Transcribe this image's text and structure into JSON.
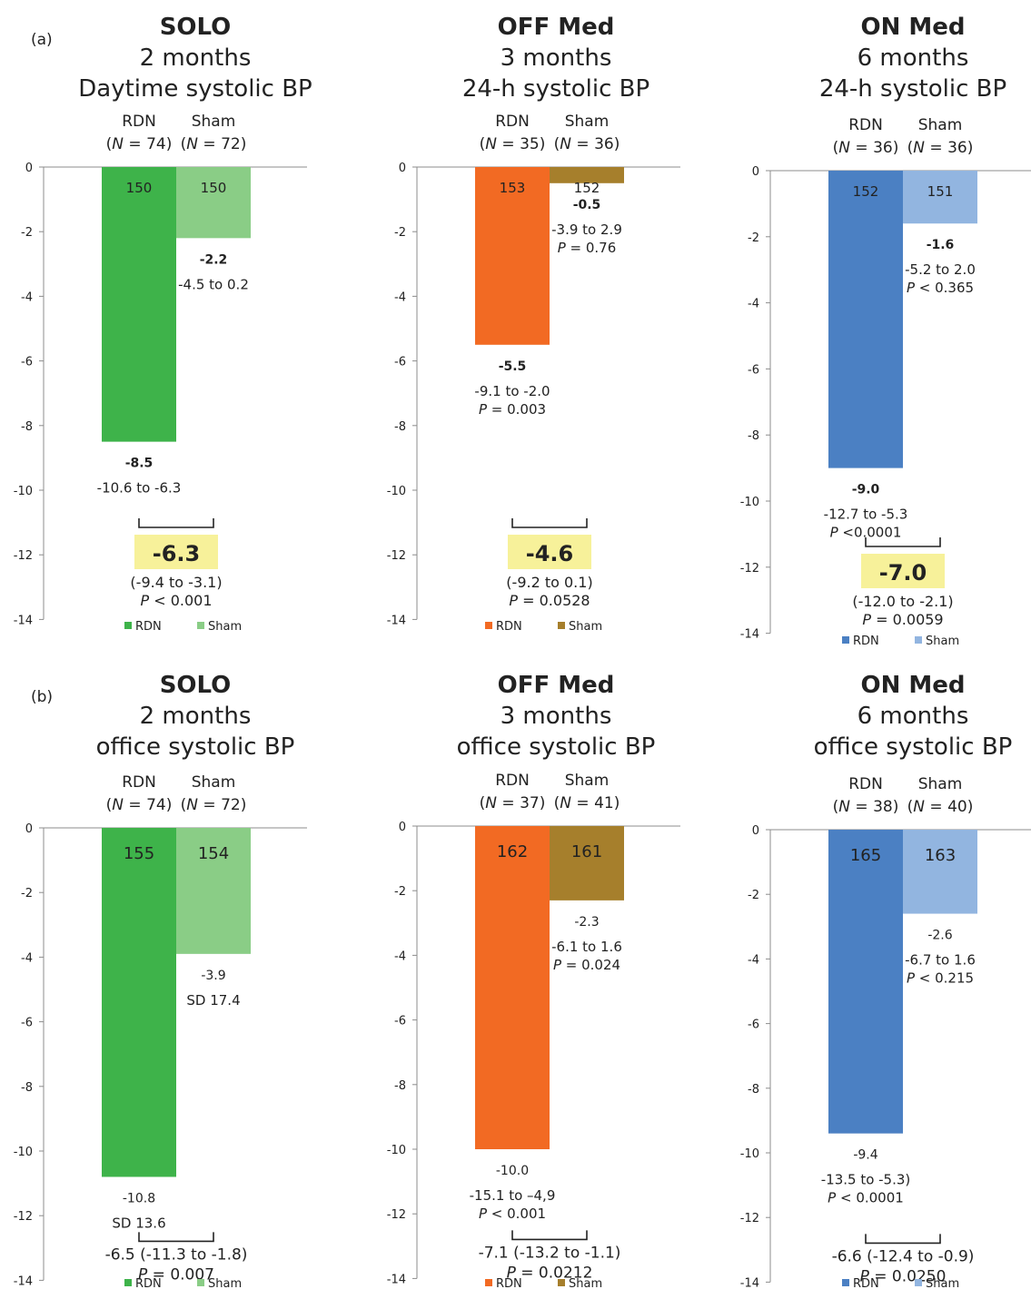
{
  "panels": [
    {
      "id": "a",
      "label": "(a)"
    },
    {
      "id": "b",
      "label": "(b)"
    }
  ],
  "legend_labels": [
    "RDN",
    "Sham"
  ],
  "colors": {
    "solo_rdn": "#3eb34a",
    "solo_sham": "#8acd86",
    "off_rdn": "#f26a23",
    "off_sham": "#a67f2c",
    "on_rdn": "#4b80c3",
    "on_sham": "#92b5e0",
    "highlight": "#f7f19a"
  },
  "chart_data": [
    {
      "type": "bar",
      "panel": "a",
      "title": "SOLO",
      "subtitle_lines": [
        "2 months",
        "Daytime systolic BP"
      ],
      "categories": [
        "RDN",
        "Sham"
      ],
      "n_labels": [
        "(N = 74)",
        "(N = 72)"
      ],
      "values": [
        -8.5,
        -2.2
      ],
      "baseline_labels": [
        "150",
        "150"
      ],
      "value_labels": [
        "-8.5",
        "-2.2"
      ],
      "value_bold": true,
      "ci_labels": [
        [
          "-10.6 to -6.3"
        ],
        [
          "-4.5 to 0.2"
        ]
      ],
      "difference": {
        "value": "-6.3",
        "ci": "(-9.4 to -3.1)",
        "p": "P < 0.001",
        "highlight": true
      },
      "ylim": [
        -14,
        0
      ],
      "yticks": [
        "0",
        "-2",
        "-4",
        "-6",
        "-8",
        "-10",
        "-12",
        "-14"
      ],
      "legend": [
        "RDN",
        "Sham"
      ]
    },
    {
      "type": "bar",
      "panel": "a",
      "title": "OFF Med",
      "subtitle_lines": [
        "3 months",
        "24-h systolic BP"
      ],
      "categories": [
        "RDN",
        "Sham"
      ],
      "n_labels": [
        "(N = 35)",
        "(N = 36)"
      ],
      "values": [
        -5.5,
        -0.5
      ],
      "baseline_labels": [
        "153",
        "152"
      ],
      "value_labels": [
        "-5.5",
        "-0.5"
      ],
      "value_bold": true,
      "ci_labels": [
        [
          "-9.1 to -2.0",
          "P = 0.003"
        ],
        [
          "-3.9 to 2.9",
          "P = 0.76"
        ]
      ],
      "difference": {
        "value": "-4.6",
        "ci": "(-9.2 to 0.1)",
        "p": "P = 0.0528",
        "highlight": true
      },
      "ylim": [
        -14,
        0
      ],
      "yticks": [
        "0",
        "-2",
        "-4",
        "-6",
        "-8",
        "-10",
        "-12",
        "-14"
      ],
      "legend": [
        "RDN",
        "Sham"
      ]
    },
    {
      "type": "bar",
      "panel": "a",
      "title": "ON Med",
      "subtitle_lines": [
        "6 months",
        "24-h systolic BP"
      ],
      "categories": [
        "RDN",
        "Sham"
      ],
      "n_labels": [
        "(N = 36)",
        "(N = 36)"
      ],
      "values": [
        -9.0,
        -1.6
      ],
      "baseline_labels": [
        "152",
        "151"
      ],
      "value_labels": [
        "-9.0",
        "-1.6"
      ],
      "value_bold": true,
      "ci_labels": [
        [
          "-12.7 to -5.3",
          "P <0.0001"
        ],
        [
          "-5.2 to 2.0",
          "P < 0.365"
        ]
      ],
      "difference": {
        "value": "-7.0",
        "ci": "(-12.0 to -2.1)",
        "p": "P = 0.0059",
        "highlight": true
      },
      "ylim": [
        -14,
        0
      ],
      "yticks": [
        "0",
        "-2",
        "-4",
        "-6",
        "-8",
        "-10",
        "-12",
        "-14"
      ],
      "legend": [
        "RDN",
        "Sham"
      ]
    },
    {
      "type": "bar",
      "panel": "b",
      "title": "SOLO",
      "subtitle_lines": [
        "2 months",
        "office systolic BP"
      ],
      "categories": [
        "RDN",
        "Sham"
      ],
      "n_labels": [
        "(N = 74)",
        "(N = 72)"
      ],
      "values": [
        -10.8,
        -3.9
      ],
      "baseline_labels": [
        "155",
        "154"
      ],
      "value_labels": [
        "-10.8",
        "-3.9"
      ],
      "value_bold": false,
      "ci_labels": [
        [
          "SD 13.6"
        ],
        [
          "SD 17.4"
        ]
      ],
      "difference": {
        "value": "-6.5",
        "ci": "(-11.3 to -1.8)",
        "p": "P = 0.007",
        "highlight": false
      },
      "ylim": [
        -14,
        0
      ],
      "yticks": [
        "0",
        "-2",
        "-4",
        "-6",
        "-8",
        "-10",
        "-12",
        "-14"
      ],
      "legend": [
        "RDN",
        "Sham"
      ]
    },
    {
      "type": "bar",
      "panel": "b",
      "title": "OFF Med",
      "subtitle_lines": [
        "3 months",
        "office systolic BP"
      ],
      "categories": [
        "RDN",
        "Sham"
      ],
      "n_labels": [
        "(N = 37)",
        "(N = 41)"
      ],
      "values": [
        -10.0,
        -2.3
      ],
      "baseline_labels": [
        "162",
        "161"
      ],
      "value_labels": [
        "-10.0",
        "-2.3"
      ],
      "value_bold": false,
      "ci_labels": [
        [
          "-15.1 to –4,9",
          "P < 0.001"
        ],
        [
          "-6.1 to 1.6",
          "P = 0.024"
        ]
      ],
      "difference": {
        "value": "-7.1",
        "ci": "(-13.2 to -1.1)",
        "p": "P = 0.0212",
        "highlight": false
      },
      "ylim": [
        -14,
        0
      ],
      "yticks": [
        "0",
        "-2",
        "-4",
        "-6",
        "-8",
        "-10",
        "-12",
        "-14"
      ],
      "legend": [
        "RDN",
        "Sham"
      ]
    },
    {
      "type": "bar",
      "panel": "b",
      "title": "ON Med",
      "subtitle_lines": [
        "6 months",
        "office systolic BP"
      ],
      "categories": [
        "RDN",
        "Sham"
      ],
      "n_labels": [
        "(N = 38)",
        "(N = 40)"
      ],
      "values": [
        -9.4,
        -2.6
      ],
      "baseline_labels": [
        "165",
        "163"
      ],
      "value_labels": [
        "-9.4",
        "-2.6"
      ],
      "value_bold": false,
      "ci_labels": [
        [
          "-13.5 to -5.3)",
          "P < 0.0001"
        ],
        [
          "-6.7 to 1.6",
          "P < 0.215"
        ]
      ],
      "difference": {
        "value": "-6.6",
        "ci": "(-12.4 to -0.9)",
        "p": "P = 0.0250",
        "highlight": false
      },
      "ylim": [
        -14,
        0
      ],
      "yticks": [
        "0",
        "-2",
        "-4",
        "-6",
        "-8",
        "-10",
        "-12",
        "-14"
      ],
      "legend": [
        "RDN",
        "Sham"
      ]
    }
  ]
}
